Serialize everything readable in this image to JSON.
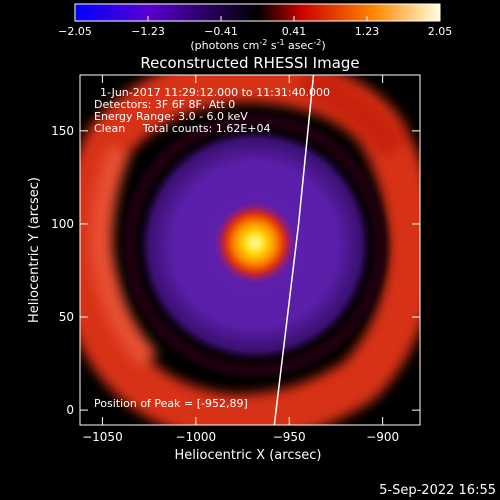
{
  "colorbar": {
    "ticks": [
      "-2.05",
      "-1.23",
      "-0.41",
      "0.41",
      "1.23",
      "2.05"
    ],
    "units": {
      "base": "(photons cm",
      "sup1": "-2",
      "mid": " s",
      "sup2": "-1",
      "mid2": " asec",
      "sup3": "-2",
      "end": ")"
    },
    "colors": [
      "#0000ff",
      "#7a00c8",
      "#000000",
      "#d20000",
      "#ff8c00",
      "#ffffd0"
    ]
  },
  "chart_data": {
    "type": "heatmap",
    "title": "Reconstructed RHESSI Image",
    "xlabel": "Heliocentric X (arcsec)",
    "ylabel": "Heliocentric Y (arcsec)",
    "xlim": [
      -1062,
      -880
    ],
    "ylim": [
      -8,
      180
    ],
    "xticks": [
      -1050,
      -1000,
      -950,
      -900
    ],
    "xtick_labels": [
      "−1050",
      "−1000",
      "−950",
      "−900"
    ],
    "yticks": [
      0,
      50,
      100,
      150
    ],
    "yticks_labels": [
      "0",
      "50",
      "100",
      "150"
    ],
    "peak": {
      "x": -952,
      "y": 89
    },
    "limb": [
      {
        "x": -958,
        "y": -8
      },
      {
        "x": -945,
        "y": 100
      },
      {
        "x": -937,
        "y": 180
      }
    ],
    "annotations": [
      "1-Jun-2017 11:29:12.000 to 11:31:40.000",
      "Detectors: 3F 6F 8F, Att 0",
      "Energy Range: 3.0 - 6.0 keV",
      "Clean     Total counts: 1.62E+04"
    ],
    "peak_label": "Position of Peak = [-952,89]"
  },
  "footer_date": "5-Sep-2022 16:55"
}
